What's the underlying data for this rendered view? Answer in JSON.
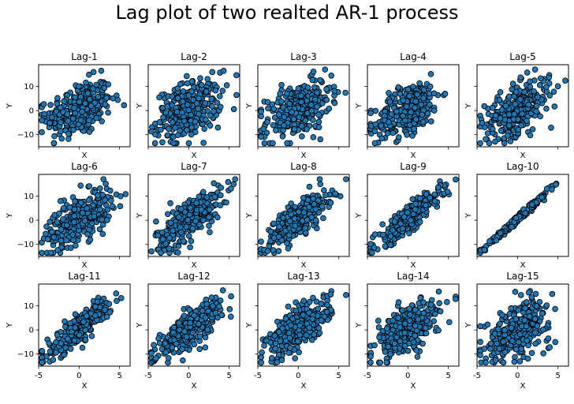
{
  "title": "Lag plot of two realted AR-1 process",
  "chart_data": {
    "type": "scatter",
    "grid": false,
    "shared_x": true,
    "shared_y": true,
    "xlim": [
      -5,
      6.3
    ],
    "ylim": [
      -15,
      19
    ],
    "xticks": [
      -5,
      0,
      5
    ],
    "yticks": [
      -10,
      0,
      10
    ],
    "xlabel": "X",
    "ylabel": "Y",
    "marker_color": "#1f77b4",
    "marker_edge_color": "#000000",
    "panels": [
      {
        "title": "Lag-1",
        "lag": 1,
        "correlation": 0.35,
        "points": 300
      },
      {
        "title": "Lag-2",
        "lag": 2,
        "correlation": 0.38,
        "points": 300
      },
      {
        "title": "Lag-3",
        "lag": 3,
        "correlation": 0.45,
        "points": 300
      },
      {
        "title": "Lag-4",
        "lag": 4,
        "correlation": 0.53,
        "points": 300
      },
      {
        "title": "Lag-5",
        "lag": 5,
        "correlation": 0.55,
        "points": 300
      },
      {
        "title": "Lag-6",
        "lag": 6,
        "correlation": 0.62,
        "points": 300
      },
      {
        "title": "Lag-7",
        "lag": 7,
        "correlation": 0.72,
        "points": 300
      },
      {
        "title": "Lag-8",
        "lag": 8,
        "correlation": 0.8,
        "points": 300
      },
      {
        "title": "Lag-9",
        "lag": 9,
        "correlation": 0.9,
        "points": 300
      },
      {
        "title": "Lag-10",
        "lag": 10,
        "correlation": 0.995,
        "points": 300
      },
      {
        "title": "Lag-11",
        "lag": 11,
        "correlation": 0.9,
        "points": 300
      },
      {
        "title": "Lag-12",
        "lag": 12,
        "correlation": 0.8,
        "points": 300
      },
      {
        "title": "Lag-13",
        "lag": 13,
        "correlation": 0.7,
        "points": 300
      },
      {
        "title": "Lag-14",
        "lag": 14,
        "correlation": 0.6,
        "points": 300
      },
      {
        "title": "Lag-15",
        "lag": 15,
        "correlation": 0.52,
        "points": 300
      }
    ]
  }
}
